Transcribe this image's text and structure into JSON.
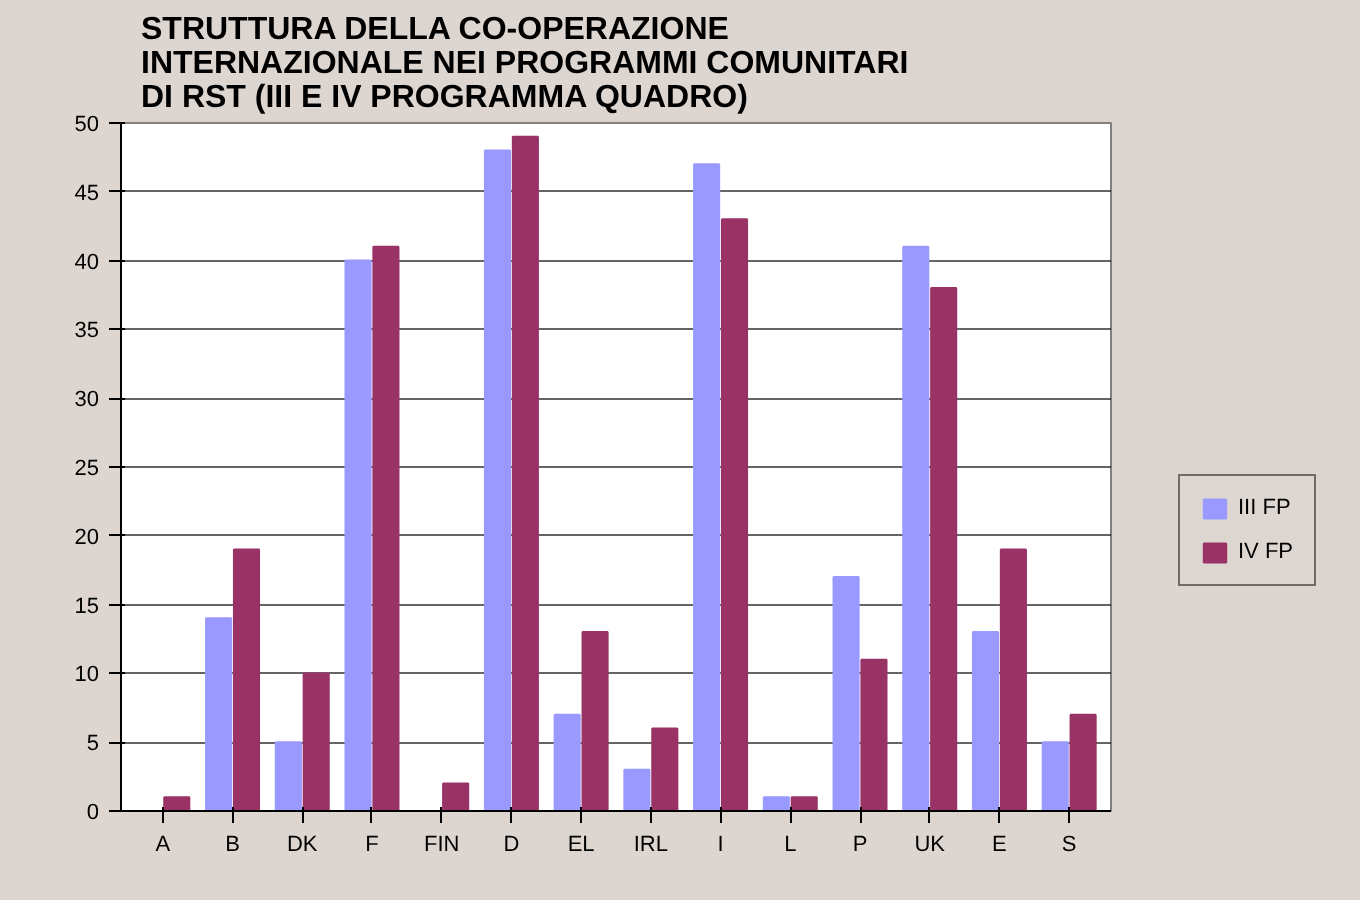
{
  "chart_data": {
    "type": "bar",
    "title": "STRUTTURA DELLA CO-OPERAZIONE INTERNAZIONALE NEI PROGRAMMI COMUNITARI DI RST (III E IV PROGRAMMA QUADRO)",
    "categories": [
      "A",
      "B",
      "DK",
      "F",
      "FIN",
      "D",
      "EL",
      "IRL",
      "I",
      "L",
      "P",
      "UK",
      "E",
      "S"
    ],
    "series": [
      {
        "name": "III FP",
        "color": "#9999ff",
        "values": [
          0,
          14,
          5,
          40,
          0,
          48,
          7,
          3,
          47,
          1,
          17,
          41,
          13,
          5
        ]
      },
      {
        "name": "IV FP",
        "color": "#993366",
        "values": [
          1,
          19,
          10,
          41,
          2,
          49,
          13,
          6,
          43,
          1,
          11,
          38,
          19,
          7
        ]
      }
    ],
    "ylim": [
      0,
      50
    ],
    "yticks": [
      0,
      5,
      10,
      15,
      20,
      25,
      30,
      35,
      40,
      45,
      50
    ],
    "grid": "y",
    "legend": "right"
  }
}
